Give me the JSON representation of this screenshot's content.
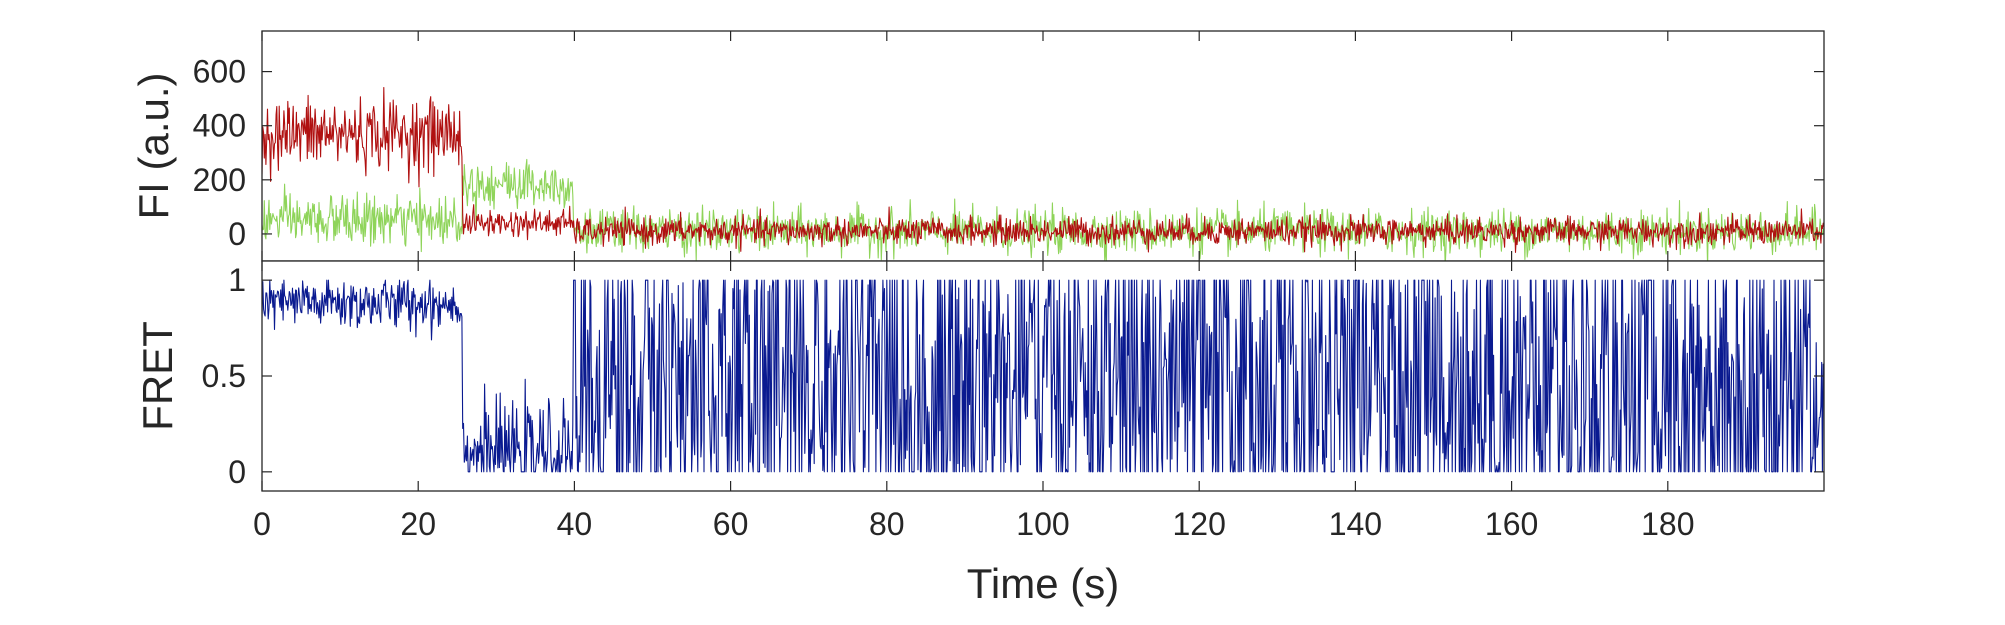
{
  "chart_data": [
    {
      "type": "line",
      "panel": "intensity",
      "ylabel": "FI (a.u.)",
      "xlim": [
        0,
        200
      ],
      "ylim": [
        -100,
        750
      ],
      "xticks": [
        0,
        20,
        40,
        60,
        80,
        100,
        120,
        140,
        160,
        180
      ],
      "yticks": [
        0,
        200,
        400,
        600
      ],
      "ytick_labels": [
        "0",
        "200",
        "400",
        "600"
      ],
      "series": [
        {
          "color": "#8fd45a",
          "segments": [
            {
              "x_start": 0,
              "x_end": 25.7,
              "mean": 50,
              "noise_sd": 45
            },
            {
              "x_start": 25.7,
              "x_end": 39.9,
              "mean": 185,
              "noise_sd": 45
            },
            {
              "x_start": 39.9,
              "x_end": 200,
              "mean": 10,
              "noise_sd": 40
            }
          ]
        },
        {
          "color": "#b01010",
          "segments": [
            {
              "x_start": 0,
              "x_end": 25.7,
              "mean": 370,
              "noise_sd": 65
            },
            {
              "x_start": 25.7,
              "x_end": 39.9,
              "mean": 40,
              "noise_sd": 25
            },
            {
              "x_start": 39.9,
              "x_end": 200,
              "mean": 10,
              "noise_sd": 25
            }
          ]
        }
      ]
    },
    {
      "type": "line",
      "panel": "fret",
      "xlabel": "Time (s)",
      "ylabel": "FRET",
      "xlim": [
        0,
        200
      ],
      "ylim": [
        -0.1,
        1.1
      ],
      "xticks": [
        0,
        20,
        40,
        60,
        80,
        100,
        120,
        140,
        160,
        180
      ],
      "xtick_labels": [
        "0",
        "20",
        "40",
        "60",
        "80",
        "100",
        "120",
        "140",
        "160",
        "180"
      ],
      "yticks": [
        0,
        0.5,
        1
      ],
      "ytick_labels": [
        "0",
        "0.5",
        "1"
      ],
      "series": [
        {
          "color": "#0a1a90",
          "segments": [
            {
              "x_start": 0,
              "x_end": 25.7,
              "mean": 0.88,
              "noise_sd": 0.07
            },
            {
              "x_start": 25.7,
              "x_end": 39.9,
              "mean": 0.1,
              "noise_sd": 0.12
            },
            {
              "x_start": 39.9,
              "x_end": 200,
              "mean": 0.45,
              "noise_sd": 0.6
            }
          ]
        }
      ]
    }
  ]
}
